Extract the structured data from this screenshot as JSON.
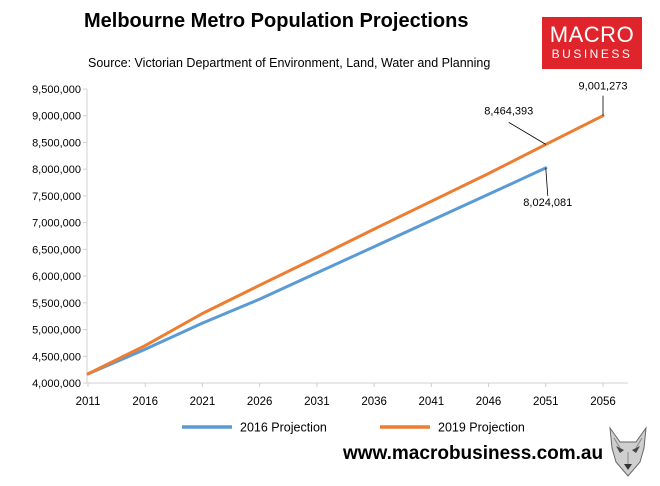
{
  "header": {
    "title": "Melbourne Metro Population Projections",
    "source": "Source: Victorian Department of Environment, Land, Water and Planning"
  },
  "logo": {
    "line1": "MACRO",
    "line2": "BUSINESS"
  },
  "footer": {
    "url": "www.macrobusiness.com.au"
  },
  "colors": {
    "series_2016": "#5b9bd5",
    "series_2019": "#ed7d31",
    "logo_bg": "#e0242b"
  },
  "chart_data": {
    "type": "line",
    "x": [
      2011,
      2016,
      2021,
      2026,
      2031,
      2036,
      2041,
      2046,
      2051,
      2056
    ],
    "x_ticks": [
      "2011",
      "2016",
      "2021",
      "2026",
      "2031",
      "2036",
      "2041",
      "2046",
      "2051",
      "2056"
    ],
    "ylim": [
      4000000,
      9500000
    ],
    "y_ticks": [
      "4,000,000",
      "4,500,000",
      "5,000,000",
      "5,500,000",
      "6,000,000",
      "6,500,000",
      "7,000,000",
      "7,500,000",
      "8,000,000",
      "8,500,000",
      "9,000,000",
      "9,500,000"
    ],
    "grid": false,
    "legend_position": "bottom",
    "series": [
      {
        "name": "2016 Projection",
        "color": "#5b9bd5",
        "x": [
          2011,
          2016,
          2021,
          2026,
          2031,
          2036,
          2041,
          2046,
          2051
        ],
        "values": [
          4170000,
          4630000,
          5120000,
          5570000,
          6060000,
          6550000,
          7040000,
          7530000,
          8024081
        ]
      },
      {
        "name": "2019 Projection",
        "color": "#ed7d31",
        "x": [
          2011,
          2016,
          2021,
          2026,
          2031,
          2036,
          2041,
          2046,
          2051,
          2056
        ],
        "values": [
          4170000,
          4700000,
          5300000,
          5830000,
          6350000,
          6880000,
          7400000,
          7920000,
          8464393,
          9001273
        ]
      }
    ],
    "annotations": [
      {
        "text": "8,464,393",
        "series": 1,
        "x": 2051
      },
      {
        "text": "9,001,273",
        "series": 1,
        "x": 2056
      },
      {
        "text": "8,024,081",
        "series": 0,
        "x": 2051
      }
    ]
  }
}
